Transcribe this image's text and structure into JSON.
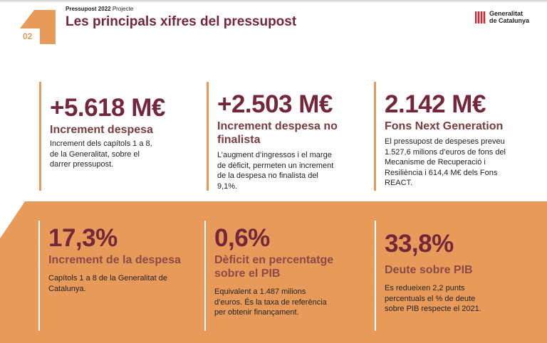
{
  "header": {
    "super_bold": "Pressupost 2022",
    "super_light": "Projecte",
    "title": "Les principals xifres del pressupost",
    "section_number": "02",
    "logo_line1": "Generalitat",
    "logo_line2": "de Catalunya"
  },
  "colors": {
    "accent": "#E89A5A",
    "maroon": "#74263A"
  },
  "top": [
    {
      "value": "+5.618 M€",
      "label": "Increment despesa",
      "text": "Increment dels capítols 1 a 8, de la Generalitat, sobre el darrer pressupost."
    },
    {
      "value": "+2.503 M€",
      "label": "Increment despesa no finalista",
      "text": "L’augment d’ingressos i el marge de dèficit, permeten un increment de la despesa no finalista del 9,1%."
    },
    {
      "value": "2.142 M€",
      "label": "Fons Next Generation",
      "text": "El pressupost de despeses preveu 1.527,6 milions d’euros de fons del Mecanisme de Recuperació i Resiliència i 614,4 M€ dels Fons REACT."
    }
  ],
  "bottom": [
    {
      "value": "17,3%",
      "label": "Increment de la despesa",
      "text": "Capítols 1 a 8 de la Generalitat de Catalunya."
    },
    {
      "value": "0,6%",
      "label": "Dèficit en percentatge sobre el PIB",
      "text": "Equivalent a 1.487 milions d’euros. És la taxa de referència per obtenir finançament."
    },
    {
      "value": "33,8%",
      "label": "Deute sobre PIB",
      "text": "Es redueixen 2,2 punts percentuals el % de deute sobre PIB respecte el 2021."
    }
  ]
}
